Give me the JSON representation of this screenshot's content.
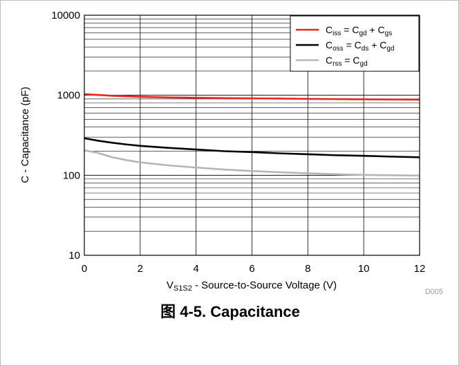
{
  "caption": "图 4-5. Capacitance",
  "figure_code": "D005",
  "chart_data": {
    "type": "line",
    "title": "",
    "xlabel": {
      "main": "V",
      "sub": "S1S2",
      "rest": " - Source-to-Source Voltage (V)"
    },
    "ylabel": "C - Capacitance (pF)",
    "xlim": [
      0,
      12
    ],
    "ylim": [
      10,
      10000
    ],
    "yscale": "log",
    "grid": true,
    "legend_placement": "top-right",
    "x_ticks": [
      0,
      2,
      4,
      6,
      8,
      10,
      12
    ],
    "x_tick_labels": [
      "0",
      "2",
      "4",
      "6",
      "8",
      "10",
      "12"
    ],
    "y_ticks": [
      10,
      100,
      1000,
      10000
    ],
    "y_tick_labels": [
      "10",
      "100",
      "1000",
      "10000"
    ],
    "series": [
      {
        "color": "#e8261e",
        "legend": [
          {
            "t": "C"
          },
          {
            "t": "iss",
            "sub": true
          },
          {
            "t": " = C"
          },
          {
            "t": "gd",
            "sub": true
          },
          {
            "t": " + C"
          },
          {
            "t": "gs",
            "sub": true
          }
        ],
        "x": [
          0,
          0.5,
          1,
          1.5,
          2,
          3,
          4,
          5,
          6,
          7,
          8,
          9,
          10,
          11,
          12
        ],
        "y": [
          1030,
          1010,
          985,
          970,
          955,
          940,
          930,
          920,
          915,
          910,
          900,
          895,
          890,
          885,
          880
        ]
      },
      {
        "color": "#000000",
        "legend": [
          {
            "t": "C"
          },
          {
            "t": "oss",
            "sub": true
          },
          {
            "t": " = C"
          },
          {
            "t": "ds",
            "sub": true
          },
          {
            "t": " + C"
          },
          {
            "t": "gd",
            "sub": true
          }
        ],
        "x": [
          0,
          0.5,
          1,
          1.5,
          2,
          3,
          4,
          5,
          6,
          7,
          8,
          9,
          10,
          11,
          12
        ],
        "y": [
          290,
          270,
          255,
          243,
          233,
          220,
          210,
          200,
          195,
          188,
          183,
          178,
          175,
          171,
          168
        ]
      },
      {
        "color": "#b5b5b5",
        "legend": [
          {
            "t": "C"
          },
          {
            "t": "rss",
            "sub": true
          },
          {
            "t": " = C"
          },
          {
            "t": "gd",
            "sub": true
          }
        ],
        "x": [
          0,
          0.5,
          1,
          1.5,
          2,
          3,
          4,
          5,
          6,
          7,
          8,
          9,
          10,
          11,
          12
        ],
        "y": [
          205,
          190,
          168,
          155,
          145,
          133,
          125,
          118,
          113,
          109,
          106,
          103,
          101,
          100,
          99
        ]
      }
    ]
  }
}
